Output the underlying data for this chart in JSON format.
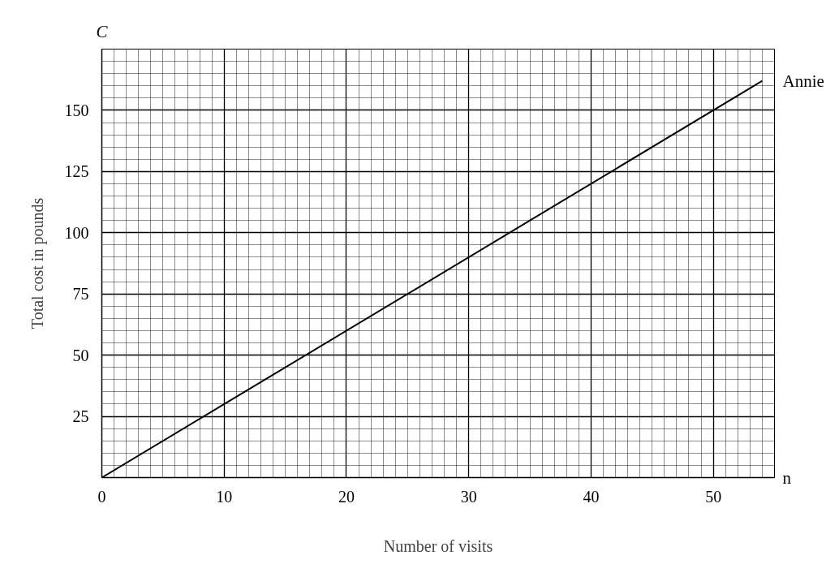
{
  "chart_data": {
    "type": "line",
    "xlabel": "Number of visits",
    "ylabel": "Total cost in pounds",
    "annotations": [
      "C",
      "n"
    ],
    "x": [
      0,
      54
    ],
    "series": [
      {
        "name": "Annie",
        "color": "#000000",
        "values": [
          0,
          162
        ]
      }
    ],
    "xlim": [
      0,
      55
    ],
    "ylim": [
      0,
      175
    ],
    "xticks": [
      0,
      10,
      20,
      30,
      40,
      50
    ],
    "yticks": [
      25,
      50,
      75,
      100,
      125,
      150
    ],
    "grid": true,
    "legend": false,
    "line_style": "solid"
  }
}
